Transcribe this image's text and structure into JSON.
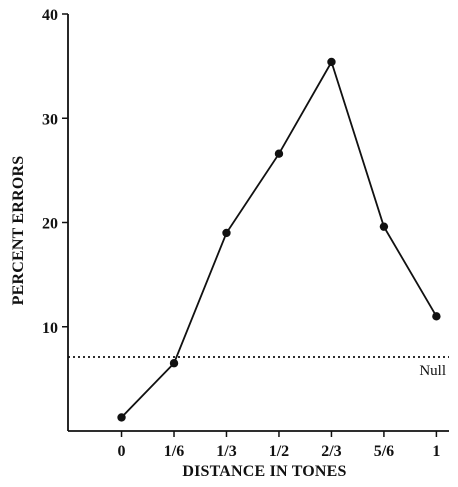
{
  "chart_data": {
    "type": "line",
    "xlabel": "DISTANCE IN TONES",
    "ylabel": "PERCENT ERRORS",
    "categories": [
      "0",
      "1/6",
      "1/3",
      "1/2",
      "2/3",
      "5/6",
      "1"
    ],
    "x": [
      0,
      0.1667,
      0.3333,
      0.5,
      0.6667,
      0.8333,
      1
    ],
    "series": [
      {
        "values": [
          1.3,
          6.5,
          19.0,
          26.6,
          35.4,
          19.6,
          11.0
        ]
      }
    ],
    "reference_line": {
      "label": "Null",
      "value": 7.1,
      "style": "dotted"
    },
    "yticks": [
      10,
      20,
      30,
      40
    ],
    "ylim": [
      0,
      40
    ],
    "xlim": [
      -0.17,
      1.04
    ],
    "grid": false,
    "colors": {
      "line": "#111111",
      "axis": "#111111"
    }
  }
}
